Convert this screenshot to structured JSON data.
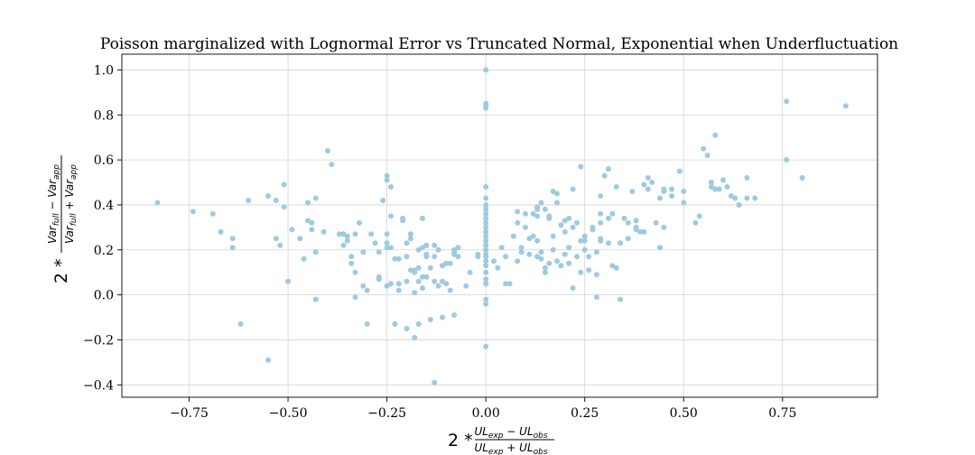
{
  "chart_data": {
    "type": "scatter",
    "title": "Poisson marginalized with Lognormal Error vs Truncated Normal, Exponential when Underfluctuation",
    "xlabel": {
      "prefix": "2 *",
      "numerator": "UL_exp − UL_obs",
      "denominator": "UL_exp + UL_obs"
    },
    "ylabel": {
      "prefix": "2 *",
      "numerator": "Var_full − Var_app",
      "denominator": "Var_full + Var_app"
    },
    "xlim": [
      -0.92,
      0.99
    ],
    "ylim": [
      -0.455,
      1.07
    ],
    "xticks": [
      -0.75,
      -0.5,
      -0.25,
      0.0,
      0.25,
      0.5,
      0.75
    ],
    "xtick_labels": [
      "−0.75",
      "−0.50",
      "−0.25",
      "0.00",
      "0.25",
      "0.50",
      "0.75"
    ],
    "yticks": [
      -0.4,
      -0.2,
      0.0,
      0.2,
      0.4,
      0.6,
      0.8,
      1.0
    ],
    "ytick_labels": [
      "−0.4",
      "−0.2",
      "0.0",
      "0.2",
      "0.4",
      "0.6",
      "0.8",
      "1.0"
    ],
    "grid": true,
    "marker_color": "#9ecae1",
    "points": [
      [
        -0.83,
        0.41
      ],
      [
        -0.74,
        0.37
      ],
      [
        -0.69,
        0.36
      ],
      [
        -0.67,
        0.28
      ],
      [
        -0.64,
        0.25
      ],
      [
        -0.64,
        0.21
      ],
      [
        -0.62,
        -0.13
      ],
      [
        -0.6,
        0.42
      ],
      [
        -0.55,
        0.44
      ],
      [
        -0.55,
        -0.29
      ],
      [
        -0.53,
        0.42
      ],
      [
        -0.53,
        0.25
      ],
      [
        -0.52,
        0.22
      ],
      [
        -0.51,
        0.39
      ],
      [
        -0.51,
        0.49
      ],
      [
        -0.5,
        0.06
      ],
      [
        -0.49,
        0.29
      ],
      [
        -0.47,
        0.25
      ],
      [
        -0.46,
        0.16
      ],
      [
        -0.45,
        0.33
      ],
      [
        -0.45,
        0.41
      ],
      [
        -0.44,
        0.32
      ],
      [
        -0.44,
        0.29
      ],
      [
        -0.43,
        0.43
      ],
      [
        -0.43,
        0.19
      ],
      [
        -0.43,
        -0.02
      ],
      [
        -0.41,
        0.28
      ],
      [
        -0.4,
        0.64
      ],
      [
        -0.39,
        0.58
      ],
      [
        -0.37,
        0.27
      ],
      [
        -0.36,
        0.22
      ],
      [
        -0.36,
        0.27
      ],
      [
        -0.35,
        0.24
      ],
      [
        -0.35,
        0.26
      ],
      [
        -0.34,
        0.14
      ],
      [
        -0.34,
        0.17
      ],
      [
        -0.33,
        0.27
      ],
      [
        -0.33,
        0.1
      ],
      [
        -0.33,
        -0.01
      ],
      [
        -0.32,
        0.32
      ],
      [
        -0.31,
        0.19
      ],
      [
        -0.31,
        0.04
      ],
      [
        -0.3,
        0.02
      ],
      [
        -0.3,
        -0.13
      ],
      [
        -0.29,
        0.27
      ],
      [
        -0.28,
        0.23
      ],
      [
        -0.27,
        0.19
      ],
      [
        -0.27,
        0.07
      ],
      [
        -0.27,
        0.08
      ],
      [
        -0.26,
        0.42
      ],
      [
        -0.25,
        0.53
      ],
      [
        -0.25,
        0.51
      ],
      [
        -0.25,
        0.27
      ],
      [
        -0.25,
        0.23
      ],
      [
        -0.25,
        0.21
      ],
      [
        -0.25,
        0.04
      ],
      [
        -0.24,
        0.48
      ],
      [
        -0.24,
        0.05
      ],
      [
        -0.24,
        0.21
      ],
      [
        -0.24,
        0.35
      ],
      [
        -0.23,
        0.16
      ],
      [
        -0.23,
        -0.13
      ],
      [
        -0.22,
        0.16
      ],
      [
        -0.22,
        0.05
      ],
      [
        -0.22,
        0.02
      ],
      [
        -0.21,
        0.33
      ],
      [
        -0.21,
        0.34
      ],
      [
        -0.2,
        0.23
      ],
      [
        -0.2,
        0.17
      ],
      [
        -0.2,
        0.06
      ],
      [
        -0.2,
        -0.15
      ],
      [
        -0.19,
        0.25
      ],
      [
        -0.19,
        0.27
      ],
      [
        -0.19,
        0.11
      ],
      [
        -0.18,
        0.1
      ],
      [
        -0.18,
        0.11
      ],
      [
        -0.18,
        0.01
      ],
      [
        -0.18,
        -0.19
      ],
      [
        -0.17,
        0.2
      ],
      [
        -0.17,
        0.12
      ],
      [
        -0.17,
        0.06
      ],
      [
        -0.17,
        -0.13
      ],
      [
        -0.16,
        0.21
      ],
      [
        -0.16,
        0.34
      ],
      [
        -0.16,
        0.08
      ],
      [
        -0.16,
        0.03
      ],
      [
        -0.15,
        0.22
      ],
      [
        -0.15,
        0.17
      ],
      [
        -0.15,
        0.18
      ],
      [
        -0.15,
        0.08
      ],
      [
        -0.14,
        0.12
      ],
      [
        -0.14,
        -0.11
      ],
      [
        -0.13,
        0.17
      ],
      [
        -0.13,
        0.22
      ],
      [
        -0.13,
        0.06
      ],
      [
        -0.13,
        -0.39
      ],
      [
        -0.12,
        0.04
      ],
      [
        -0.12,
        0.2
      ],
      [
        -0.11,
        0.13
      ],
      [
        -0.11,
        0.06
      ],
      [
        -0.11,
        -0.1
      ],
      [
        -0.1,
        0.14
      ],
      [
        -0.1,
        0.05
      ],
      [
        -0.09,
        0.14
      ],
      [
        -0.09,
        0.02
      ],
      [
        -0.08,
        0.2
      ],
      [
        -0.08,
        0.19
      ],
      [
        -0.08,
        -0.09
      ],
      [
        -0.08,
        0.18
      ],
      [
        -0.07,
        0.21
      ],
      [
        -0.07,
        0.17
      ],
      [
        -0.05,
        0.04
      ],
      [
        -0.04,
        0.1
      ],
      [
        -0.02,
        0.18
      ],
      [
        -0.02,
        0.17
      ],
      [
        0.0,
        1.0
      ],
      [
        0.0,
        0.85
      ],
      [
        0.0,
        0.84
      ],
      [
        0.0,
        0.83
      ],
      [
        0.0,
        0.48
      ],
      [
        0.0,
        0.43
      ],
      [
        0.0,
        0.4
      ],
      [
        0.0,
        0.38
      ],
      [
        0.0,
        0.36
      ],
      [
        0.0,
        0.34
      ],
      [
        0.0,
        0.32
      ],
      [
        0.0,
        0.3
      ],
      [
        0.0,
        0.28
      ],
      [
        0.0,
        0.26
      ],
      [
        0.0,
        0.24
      ],
      [
        0.0,
        0.22
      ],
      [
        0.0,
        0.2
      ],
      [
        0.0,
        0.18
      ],
      [
        0.0,
        0.17
      ],
      [
        0.0,
        0.15
      ],
      [
        0.0,
        0.13
      ],
      [
        0.0,
        0.1
      ],
      [
        0.0,
        0.07
      ],
      [
        0.0,
        0.05
      ],
      [
        0.0,
        -0.04
      ],
      [
        0.0,
        -0.02
      ],
      [
        0.0,
        -0.23
      ],
      [
        0.02,
        0.15
      ],
      [
        0.03,
        0.12
      ],
      [
        0.04,
        0.21
      ],
      [
        0.05,
        0.17
      ],
      [
        0.05,
        0.05
      ],
      [
        0.06,
        0.05
      ],
      [
        0.07,
        0.26
      ],
      [
        0.08,
        0.37
      ],
      [
        0.08,
        0.32
      ],
      [
        0.08,
        0.15
      ],
      [
        0.09,
        0.21
      ],
      [
        0.09,
        0.19
      ],
      [
        0.1,
        0.36
      ],
      [
        0.1,
        0.3
      ],
      [
        0.11,
        0.25
      ],
      [
        0.11,
        0.18
      ],
      [
        0.12,
        0.36
      ],
      [
        0.12,
        0.26
      ],
      [
        0.13,
        0.35
      ],
      [
        0.13,
        0.39
      ],
      [
        0.13,
        0.38
      ],
      [
        0.13,
        0.24
      ],
      [
        0.13,
        0.17
      ],
      [
        0.14,
        0.41
      ],
      [
        0.14,
        0.19
      ],
      [
        0.14,
        0.16
      ],
      [
        0.15,
        0.38
      ],
      [
        0.15,
        0.12
      ],
      [
        0.15,
        0.1
      ],
      [
        0.16,
        0.34
      ],
      [
        0.16,
        0.35
      ],
      [
        0.16,
        0.14
      ],
      [
        0.17,
        0.46
      ],
      [
        0.17,
        0.26
      ],
      [
        0.17,
        0.2
      ],
      [
        0.18,
        0.45
      ],
      [
        0.18,
        0.41
      ],
      [
        0.18,
        0.15
      ],
      [
        0.19,
        0.31
      ],
      [
        0.19,
        0.13
      ],
      [
        0.2,
        0.33
      ],
      [
        0.2,
        0.28
      ],
      [
        0.2,
        0.18
      ],
      [
        0.21,
        0.34
      ],
      [
        0.21,
        0.21
      ],
      [
        0.21,
        0.14
      ],
      [
        0.22,
        0.3
      ],
      [
        0.22,
        0.47
      ],
      [
        0.22,
        0.03
      ],
      [
        0.23,
        0.32
      ],
      [
        0.23,
        0.17
      ],
      [
        0.24,
        0.57
      ],
      [
        0.24,
        0.24
      ],
      [
        0.24,
        0.1
      ],
      [
        0.25,
        0.26
      ],
      [
        0.25,
        0.24
      ],
      [
        0.25,
        0.2
      ],
      [
        0.26,
        0.17
      ],
      [
        0.26,
        0.11
      ],
      [
        0.27,
        0.3
      ],
      [
        0.27,
        0.29
      ],
      [
        0.28,
        0.19
      ],
      [
        0.28,
        0.09
      ],
      [
        0.28,
        -0.01
      ],
      [
        0.29,
        0.36
      ],
      [
        0.29,
        0.44
      ],
      [
        0.29,
        0.32
      ],
      [
        0.29,
        0.25
      ],
      [
        0.29,
        0.24
      ],
      [
        0.3,
        0.53
      ],
      [
        0.31,
        0.56
      ],
      [
        0.31,
        0.34
      ],
      [
        0.31,
        0.23
      ],
      [
        0.32,
        0.36
      ],
      [
        0.32,
        0.13
      ],
      [
        0.33,
        0.48
      ],
      [
        0.33,
        0.12
      ],
      [
        0.34,
        0.23
      ],
      [
        0.34,
        -0.02
      ],
      [
        0.35,
        0.34
      ],
      [
        0.36,
        0.32
      ],
      [
        0.36,
        0.25
      ],
      [
        0.37,
        0.46
      ],
      [
        0.38,
        0.3
      ],
      [
        0.38,
        0.33
      ],
      [
        0.38,
        0.29
      ],
      [
        0.39,
        0.28
      ],
      [
        0.4,
        0.49
      ],
      [
        0.4,
        0.28
      ],
      [
        0.41,
        0.47
      ],
      [
        0.41,
        0.52
      ],
      [
        0.42,
        0.5
      ],
      [
        0.43,
        0.32
      ],
      [
        0.44,
        0.43
      ],
      [
        0.44,
        0.21
      ],
      [
        0.45,
        0.46
      ],
      [
        0.45,
        0.47
      ],
      [
        0.45,
        0.3
      ],
      [
        0.47,
        0.47
      ],
      [
        0.47,
        0.44
      ],
      [
        0.49,
        0.55
      ],
      [
        0.5,
        0.46
      ],
      [
        0.5,
        0.41
      ],
      [
        0.53,
        0.32
      ],
      [
        0.54,
        0.35
      ],
      [
        0.55,
        0.65
      ],
      [
        0.56,
        0.62
      ],
      [
        0.57,
        0.5
      ],
      [
        0.57,
        0.48
      ],
      [
        0.58,
        0.71
      ],
      [
        0.58,
        0.47
      ],
      [
        0.59,
        0.47
      ],
      [
        0.6,
        0.51
      ],
      [
        0.61,
        0.48
      ],
      [
        0.62,
        0.44
      ],
      [
        0.63,
        0.43
      ],
      [
        0.64,
        0.4
      ],
      [
        0.66,
        0.43
      ],
      [
        0.66,
        0.52
      ],
      [
        0.68,
        0.43
      ],
      [
        0.76,
        0.86
      ],
      [
        0.76,
        0.6
      ],
      [
        0.8,
        0.52
      ],
      [
        0.91,
        0.84
      ]
    ]
  }
}
